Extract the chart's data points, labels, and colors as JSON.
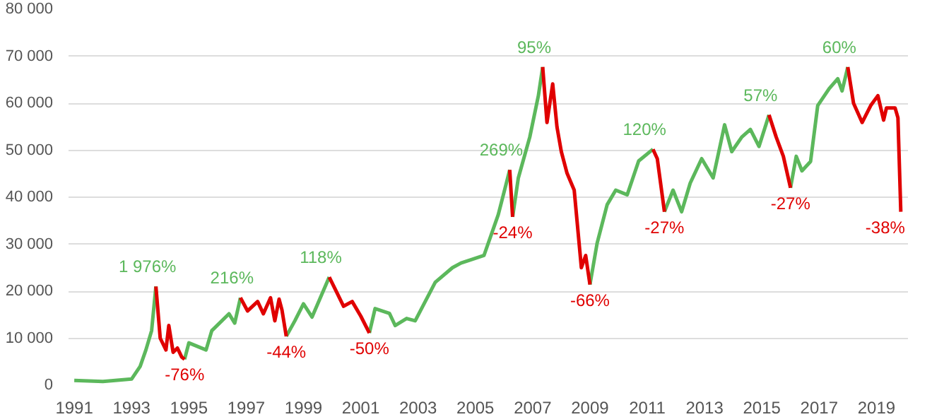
{
  "chart_data": {
    "type": "line",
    "xlim": [
      1990.8,
      2020.1
    ],
    "ylim": [
      0,
      80000
    ],
    "xticks": [
      1991,
      1993,
      1995,
      1997,
      1999,
      2001,
      2003,
      2005,
      2007,
      2009,
      2011,
      2013,
      2015,
      2017,
      2019
    ],
    "yticks": [
      {
        "value": 0,
        "label": "0"
      },
      {
        "value": 10000,
        "label": "10 000"
      },
      {
        "value": 20000,
        "label": "20 000"
      },
      {
        "value": 30000,
        "label": "30 000"
      },
      {
        "value": 40000,
        "label": "40 000"
      },
      {
        "value": 50000,
        "label": "50 000"
      },
      {
        "value": 60000,
        "label": "60 000"
      },
      {
        "value": 70000,
        "label": "70 000"
      },
      {
        "value": 80000,
        "label": "80 000"
      }
    ],
    "grid": "y",
    "series": [
      {
        "color": "#5cb85c",
        "x": [
          1991,
          1992,
          1993,
          1993.3,
          1993.5,
          1993.7,
          1993.85,
          null,
          1994.85,
          1995,
          1995.6,
          1995.8,
          1996.4,
          1996.6,
          1996.8,
          null,
          1998.4,
          1998.7,
          1999,
          1999.3,
          1999.9,
          null,
          2001.3,
          2001.5,
          2002,
          2002.2,
          2002.6,
          2002.9,
          2003.6,
          2004.2,
          2004.5,
          2004.8,
          2005.3,
          2005.8,
          2006.2,
          null,
          2006.3,
          2006.5,
          2006.9,
          2007.2,
          2007.35,
          null,
          2009,
          2009.25,
          2009.6,
          2009.9,
          2010.3,
          2010.7,
          2011.2,
          null,
          2011.6,
          2011.9,
          2012.2,
          2012.5,
          2012.9,
          2013.3,
          2013.7,
          2013.95,
          2014.3,
          2014.6,
          2014.9,
          2015.25,
          null,
          2016,
          2016.2,
          2016.4,
          2016.7,
          2016.95,
          2017.35,
          2017.65,
          2017.8,
          2018
        ],
        "values": [
          1000,
          800,
          1300,
          4000,
          7500,
          11600,
          21000,
          null,
          5500,
          9000,
          7500,
          11600,
          15200,
          13200,
          18600,
          null,
          10400,
          13700,
          17300,
          14500,
          23000,
          null,
          11100,
          16300,
          15300,
          12700,
          14200,
          13700,
          21900,
          25000,
          26000,
          26600,
          27600,
          36300,
          45800,
          null,
          35800,
          44100,
          52800,
          61600,
          67700,
          null,
          21400,
          30200,
          38400,
          41500,
          40500,
          47700,
          50200,
          null,
          36900,
          41500,
          36900,
          43000,
          48200,
          44100,
          55400,
          49700,
          52800,
          54400,
          50800,
          57500,
          null,
          42000,
          48700,
          45600,
          47600,
          59500,
          63100,
          65200,
          62600,
          67700
        ]
      },
      {
        "color": "#e00000",
        "x": [
          1993.85,
          1994,
          1994.2,
          1994.3,
          1994.45,
          1994.6,
          1994.75,
          1994.85,
          null,
          1996.8,
          1997.05,
          1997.4,
          1997.6,
          1997.85,
          1998,
          1998.15,
          1998.25,
          1998.4,
          null,
          1999.9,
          2000.15,
          2000.4,
          2000.7,
          2001,
          2001.3,
          null,
          2006.2,
          2006.3,
          null,
          2007.35,
          2007.5,
          2007.7,
          2007.85,
          2008,
          2008.2,
          2008.45,
          2008.7,
          2008.85,
          2009,
          null,
          2011.2,
          2011.35,
          2011.6,
          null,
          2015.25,
          2015.5,
          2015.75,
          2016,
          null,
          2018,
          2018.2,
          2018.5,
          2018.8,
          2019.05,
          2019.25,
          2019.35,
          2019.65,
          2019.75,
          2019.85
        ],
        "values": [
          21000,
          10000,
          7500,
          12700,
          7000,
          7900,
          6000,
          5500,
          null,
          18600,
          15800,
          17800,
          15200,
          18600,
          13700,
          18300,
          16000,
          10400,
          null,
          23000,
          19900,
          16800,
          17800,
          14700,
          11100,
          null,
          45800,
          35800,
          null,
          67700,
          55900,
          64100,
          54900,
          49700,
          45100,
          41500,
          25000,
          27600,
          21400,
          null,
          50200,
          48200,
          36900,
          null,
          57500,
          52800,
          48700,
          42000,
          null,
          67700,
          60000,
          55900,
          59500,
          61600,
          56400,
          59000,
          59000,
          56900,
          36900
        ]
      }
    ],
    "annotations": [
      {
        "text": "1 976%",
        "x": 1993.85,
        "y": 21000
      },
      {
        "text": "-76%",
        "x": 1994.85,
        "y": 5500
      },
      {
        "text": "216%",
        "x": 1996.8,
        "y": 18600
      },
      {
        "text": "-44%",
        "x": 1998.4,
        "y": 10400
      },
      {
        "text": "118%",
        "x": 1999.9,
        "y": 23000
      },
      {
        "text": "-50%",
        "x": 2001.3,
        "y": 11100
      },
      {
        "text": "269%",
        "x": 2006.2,
        "y": 45800
      },
      {
        "text": "-24%",
        "x": 2006.3,
        "y": 35800
      },
      {
        "text": "95%",
        "x": 2007.35,
        "y": 67700
      },
      {
        "text": "-66%",
        "x": 2009,
        "y": 21400
      },
      {
        "text": "120%",
        "x": 2011.2,
        "y": 50200
      },
      {
        "text": "-27%",
        "x": 2011.6,
        "y": 36900
      },
      {
        "text": "57%",
        "x": 2015.25,
        "y": 57500
      },
      {
        "text": "-27%",
        "x": 2016,
        "y": 42000
      },
      {
        "text": "60%",
        "x": 2018,
        "y": 67700
      },
      {
        "text": "-38%",
        "x": 2019.85,
        "y": 36900
      }
    ]
  }
}
